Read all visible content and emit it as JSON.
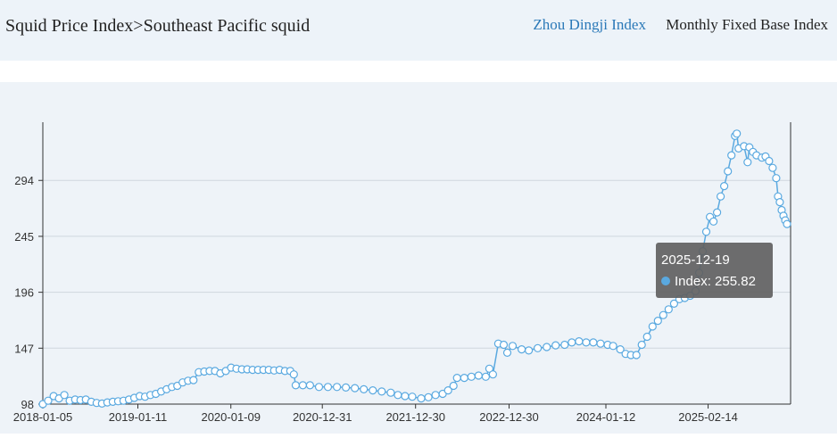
{
  "header": {
    "breadcrumb": "Squid Price Index>Southeast Pacific squid",
    "tabs": [
      {
        "label": "Zhou Dingji Index",
        "active": true
      },
      {
        "label": "Monthly Fixed Base Index",
        "active": false
      }
    ]
  },
  "tooltip": {
    "date": "2025-12-19",
    "series_label": "Index",
    "value": "255.82"
  },
  "colors": {
    "line": "#5aa9e0",
    "point_fill": "#ffffff",
    "tooltip_bg": "#616161",
    "accent": "#2b79b8"
  },
  "chart_data": {
    "type": "line",
    "x_type": "date",
    "xlim": [
      "2018-01-05",
      "2026-01-02"
    ],
    "ylim": [
      98,
      345
    ],
    "y_ticks": [
      98,
      147,
      196,
      245,
      294
    ],
    "x_ticks": [
      "2018-01-05",
      "2019-01-11",
      "2020-01-09",
      "2020-12-31",
      "2021-12-30",
      "2022-12-30",
      "2024-01-12",
      "2025-02-14"
    ],
    "grid": true,
    "series": [
      {
        "name": "Index",
        "points": [
          [
            "2018-01-05",
            98
          ],
          [
            "2018-01-26",
            101
          ],
          [
            "2018-02-16",
            105
          ],
          [
            "2018-03-09",
            103
          ],
          [
            "2018-03-30",
            106
          ],
          [
            "2018-04-20",
            101
          ],
          [
            "2018-05-11",
            102
          ],
          [
            "2018-06-01",
            101.5
          ],
          [
            "2018-06-22",
            102
          ],
          [
            "2018-07-13",
            100
          ],
          [
            "2018-08-03",
            99
          ],
          [
            "2018-08-24",
            98.5
          ],
          [
            "2018-09-14",
            99.5
          ],
          [
            "2018-10-05",
            100
          ],
          [
            "2018-10-26",
            100.5
          ],
          [
            "2018-11-16",
            101
          ],
          [
            "2018-12-07",
            102
          ],
          [
            "2018-12-28",
            103.5
          ],
          [
            "2019-01-18",
            105
          ],
          [
            "2019-02-08",
            104.5
          ],
          [
            "2019-03-01",
            106
          ],
          [
            "2019-03-22",
            107
          ],
          [
            "2019-04-12",
            109
          ],
          [
            "2019-05-03",
            111
          ],
          [
            "2019-05-24",
            113
          ],
          [
            "2019-06-14",
            114
          ],
          [
            "2019-07-05",
            117
          ],
          [
            "2019-07-26",
            118.5
          ],
          [
            "2019-08-16",
            119
          ],
          [
            "2019-09-06",
            126
          ],
          [
            "2019-09-27",
            126.5
          ],
          [
            "2019-10-18",
            127
          ],
          [
            "2019-11-08",
            127
          ],
          [
            "2019-11-29",
            125
          ],
          [
            "2019-12-20",
            127
          ],
          [
            "2020-01-10",
            130
          ],
          [
            "2020-01-31",
            129
          ],
          [
            "2020-02-21",
            128.5
          ],
          [
            "2020-03-13",
            128.5
          ],
          [
            "2020-04-03",
            128
          ],
          [
            "2020-04-24",
            128
          ],
          [
            "2020-05-15",
            128
          ],
          [
            "2020-06-05",
            128
          ],
          [
            "2020-06-26",
            127.5
          ],
          [
            "2020-07-17",
            128
          ],
          [
            "2020-08-07",
            127
          ],
          [
            "2020-08-28",
            127
          ],
          [
            "2020-09-11",
            124
          ],
          [
            "2020-09-18",
            114.5
          ],
          [
            "2020-10-16",
            114.5
          ],
          [
            "2020-11-13",
            114.5
          ],
          [
            "2020-12-18",
            113
          ],
          [
            "2021-01-22",
            113
          ],
          [
            "2021-02-26",
            113
          ],
          [
            "2021-04-02",
            112.5
          ],
          [
            "2021-05-07",
            112
          ],
          [
            "2021-06-11",
            111
          ],
          [
            "2021-07-16",
            110
          ],
          [
            "2021-08-20",
            109
          ],
          [
            "2021-09-24",
            108
          ],
          [
            "2021-10-22",
            106
          ],
          [
            "2021-11-19",
            105
          ],
          [
            "2021-12-17",
            104.5
          ],
          [
            "2022-01-21",
            103
          ],
          [
            "2022-02-18",
            104
          ],
          [
            "2022-03-18",
            106
          ],
          [
            "2022-04-15",
            107
          ],
          [
            "2022-05-06",
            110
          ],
          [
            "2022-05-27",
            114
          ],
          [
            "2022-06-10",
            121
          ],
          [
            "2022-07-08",
            121
          ],
          [
            "2022-08-05",
            122
          ],
          [
            "2022-09-02",
            123
          ],
          [
            "2022-09-30",
            122
          ],
          [
            "2022-10-14",
            129
          ],
          [
            "2022-10-28",
            124
          ],
          [
            "2022-11-18",
            151
          ],
          [
            "2022-12-09",
            150
          ],
          [
            "2022-12-23",
            143
          ],
          [
            "2023-01-13",
            149
          ],
          [
            "2023-02-17",
            146
          ],
          [
            "2023-03-17",
            145
          ],
          [
            "2023-04-21",
            147
          ],
          [
            "2023-05-26",
            148
          ],
          [
            "2023-06-30",
            149.5
          ],
          [
            "2023-08-04",
            150
          ],
          [
            "2023-09-01",
            152
          ],
          [
            "2023-09-29",
            153
          ],
          [
            "2023-10-27",
            152
          ],
          [
            "2023-11-24",
            152
          ],
          [
            "2023-12-22",
            151
          ],
          [
            "2024-01-19",
            150
          ],
          [
            "2024-02-09",
            149
          ],
          [
            "2024-03-08",
            146
          ],
          [
            "2024-03-29",
            142
          ],
          [
            "2024-04-19",
            141
          ],
          [
            "2024-05-10",
            141
          ],
          [
            "2024-05-31",
            150
          ],
          [
            "2024-06-21",
            157
          ],
          [
            "2024-07-12",
            166
          ],
          [
            "2024-08-02",
            171
          ],
          [
            "2024-08-23",
            176
          ],
          [
            "2024-09-13",
            181
          ],
          [
            "2024-10-04",
            186
          ],
          [
            "2024-10-25",
            190
          ],
          [
            "2024-11-15",
            191
          ],
          [
            "2024-12-06",
            193
          ],
          [
            "2024-12-27",
            197
          ],
          [
            "2025-01-10",
            213
          ],
          [
            "2025-01-24",
            232
          ],
          [
            "2025-02-07",
            249
          ],
          [
            "2025-02-21",
            262
          ],
          [
            "2025-03-07",
            258
          ],
          [
            "2025-03-21",
            266
          ],
          [
            "2025-04-04",
            280
          ],
          [
            "2025-04-18",
            289
          ],
          [
            "2025-05-02",
            302
          ],
          [
            "2025-05-16",
            316
          ],
          [
            "2025-05-30",
            333
          ],
          [
            "2025-06-06",
            335
          ],
          [
            "2025-06-13",
            322
          ],
          [
            "2025-07-04",
            324
          ],
          [
            "2025-07-18",
            310
          ],
          [
            "2025-07-25",
            323
          ],
          [
            "2025-08-08",
            319
          ],
          [
            "2025-08-22",
            316
          ],
          [
            "2025-09-12",
            314
          ],
          [
            "2025-09-26",
            315
          ],
          [
            "2025-10-10",
            311
          ],
          [
            "2025-10-24",
            305
          ],
          [
            "2025-11-07",
            296
          ],
          [
            "2025-11-14",
            280
          ],
          [
            "2025-11-21",
            275
          ],
          [
            "2025-11-28",
            268
          ],
          [
            "2025-12-05",
            263
          ],
          [
            "2025-12-12",
            259
          ],
          [
            "2025-12-19",
            255.82
          ]
        ]
      }
    ]
  }
}
